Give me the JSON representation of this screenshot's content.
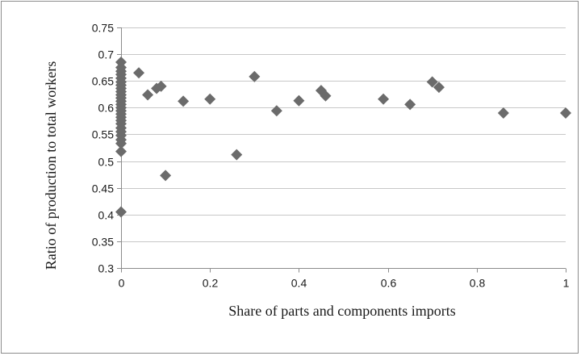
{
  "chart_data": {
    "type": "scatter",
    "title": "",
    "xlabel": "Share of parts  and components imports",
    "ylabel": "Ratio of production to total workers",
    "xlim": [
      0,
      1
    ],
    "ylim": [
      0.3,
      0.75
    ],
    "xticks": [
      0,
      0.2,
      0.4,
      0.6,
      0.8,
      1
    ],
    "xtick_labels": [
      "0",
      "0.2",
      "0.4",
      "0.6",
      "0.8",
      "1"
    ],
    "yticks": [
      0.3,
      0.35,
      0.4,
      0.45,
      0.5,
      0.55,
      0.6,
      0.65,
      0.7,
      0.75
    ],
    "ytick_labels": [
      "0.3",
      "0.35",
      "0.4",
      "0.45",
      "0.5",
      "0.55",
      "0.6",
      "0.65",
      "0.7",
      "0.75"
    ],
    "grid": "horizontal",
    "legend": "none",
    "marker": "diamond",
    "marker_color": "#6b6b6b",
    "points": [
      [
        0,
        0.685
      ],
      [
        0,
        0.675
      ],
      [
        0,
        0.668
      ],
      [
        0,
        0.662
      ],
      [
        0,
        0.655
      ],
      [
        0,
        0.648
      ],
      [
        0,
        0.642
      ],
      [
        0,
        0.636
      ],
      [
        0,
        0.63
      ],
      [
        0,
        0.624
      ],
      [
        0,
        0.618
      ],
      [
        0,
        0.612
      ],
      [
        0,
        0.606
      ],
      [
        0,
        0.6
      ],
      [
        0,
        0.594
      ],
      [
        0,
        0.588
      ],
      [
        0,
        0.582
      ],
      [
        0,
        0.576
      ],
      [
        0,
        0.57
      ],
      [
        0,
        0.562
      ],
      [
        0,
        0.555
      ],
      [
        0,
        0.548
      ],
      [
        0,
        0.54
      ],
      [
        0,
        0.533
      ],
      [
        0,
        0.518
      ],
      [
        0,
        0.405
      ],
      [
        0.04,
        0.665
      ],
      [
        0.06,
        0.624
      ],
      [
        0.08,
        0.636
      ],
      [
        0.09,
        0.64
      ],
      [
        0.1,
        0.473
      ],
      [
        0.14,
        0.612
      ],
      [
        0.2,
        0.616
      ],
      [
        0.26,
        0.512
      ],
      [
        0.3,
        0.658
      ],
      [
        0.35,
        0.594
      ],
      [
        0.4,
        0.613
      ],
      [
        0.45,
        0.632
      ],
      [
        0.46,
        0.622
      ],
      [
        0.59,
        0.616
      ],
      [
        0.65,
        0.606
      ],
      [
        0.7,
        0.648
      ],
      [
        0.715,
        0.638
      ],
      [
        0.86,
        0.59
      ],
      [
        1.0,
        0.59
      ]
    ]
  }
}
